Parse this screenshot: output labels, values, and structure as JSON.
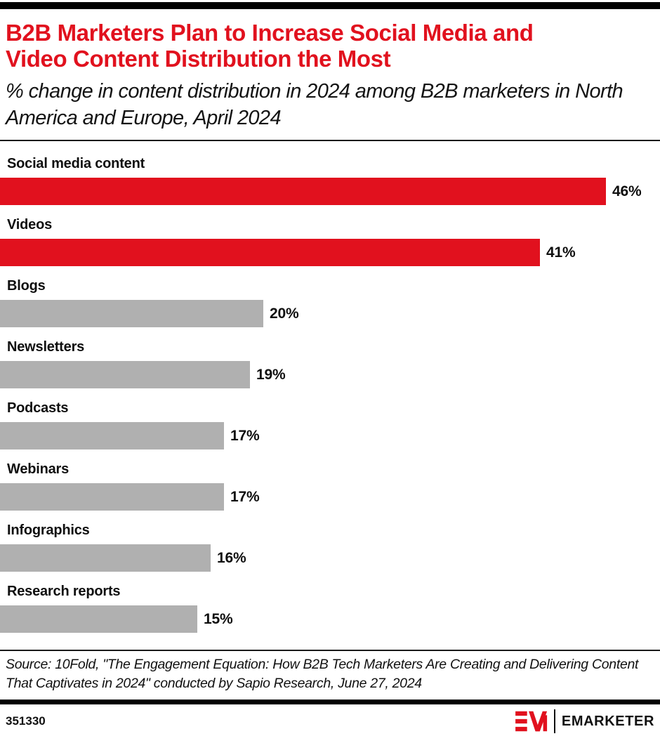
{
  "header": {
    "title": "B2B Marketers Plan to Increase Social Media and Video Content Distribution the Most",
    "subtitle": "% change in content distribution in 2024 among B2B marketers in North America and Europe, April 2024"
  },
  "chart_data": {
    "type": "bar",
    "orientation": "horizontal",
    "title": "B2B Marketers Plan to Increase Social Media and Video Content Distribution the Most",
    "subtitle": "% change in content distribution in 2024 among B2B marketers in North America and Europe, April 2024",
    "categories": [
      "Social media content",
      "Videos",
      "Blogs",
      "Newsletters",
      "Podcasts",
      "Webinars",
      "Infographics",
      "Research reports"
    ],
    "values": [
      46,
      41,
      20,
      19,
      17,
      17,
      16,
      15
    ],
    "data_labels": [
      "46%",
      "41%",
      "20%",
      "19%",
      "17%",
      "17%",
      "16%",
      "15%"
    ],
    "bar_colors": [
      "#e1111e",
      "#e1111e",
      "#b0b0b0",
      "#b0b0b0",
      "#b0b0b0",
      "#b0b0b0",
      "#b0b0b0",
      "#b0b0b0"
    ],
    "xlim": [
      0,
      50
    ],
    "grid": false,
    "legend": false,
    "xlabel": "",
    "ylabel": ""
  },
  "colors": {
    "accent_red": "#e1111e",
    "bar_gray": "#b0b0b0",
    "text_black": "#0f0f0f"
  },
  "source": {
    "text": "Source: 10Fold, \"The Engagement Equation: How B2B Tech Marketers Are Creating and Delivering Content That Captivates in 2024\" conducted by Sapio Research, June 27, 2024"
  },
  "footer": {
    "chart_id": "351330",
    "brand": "EMARKETER"
  }
}
